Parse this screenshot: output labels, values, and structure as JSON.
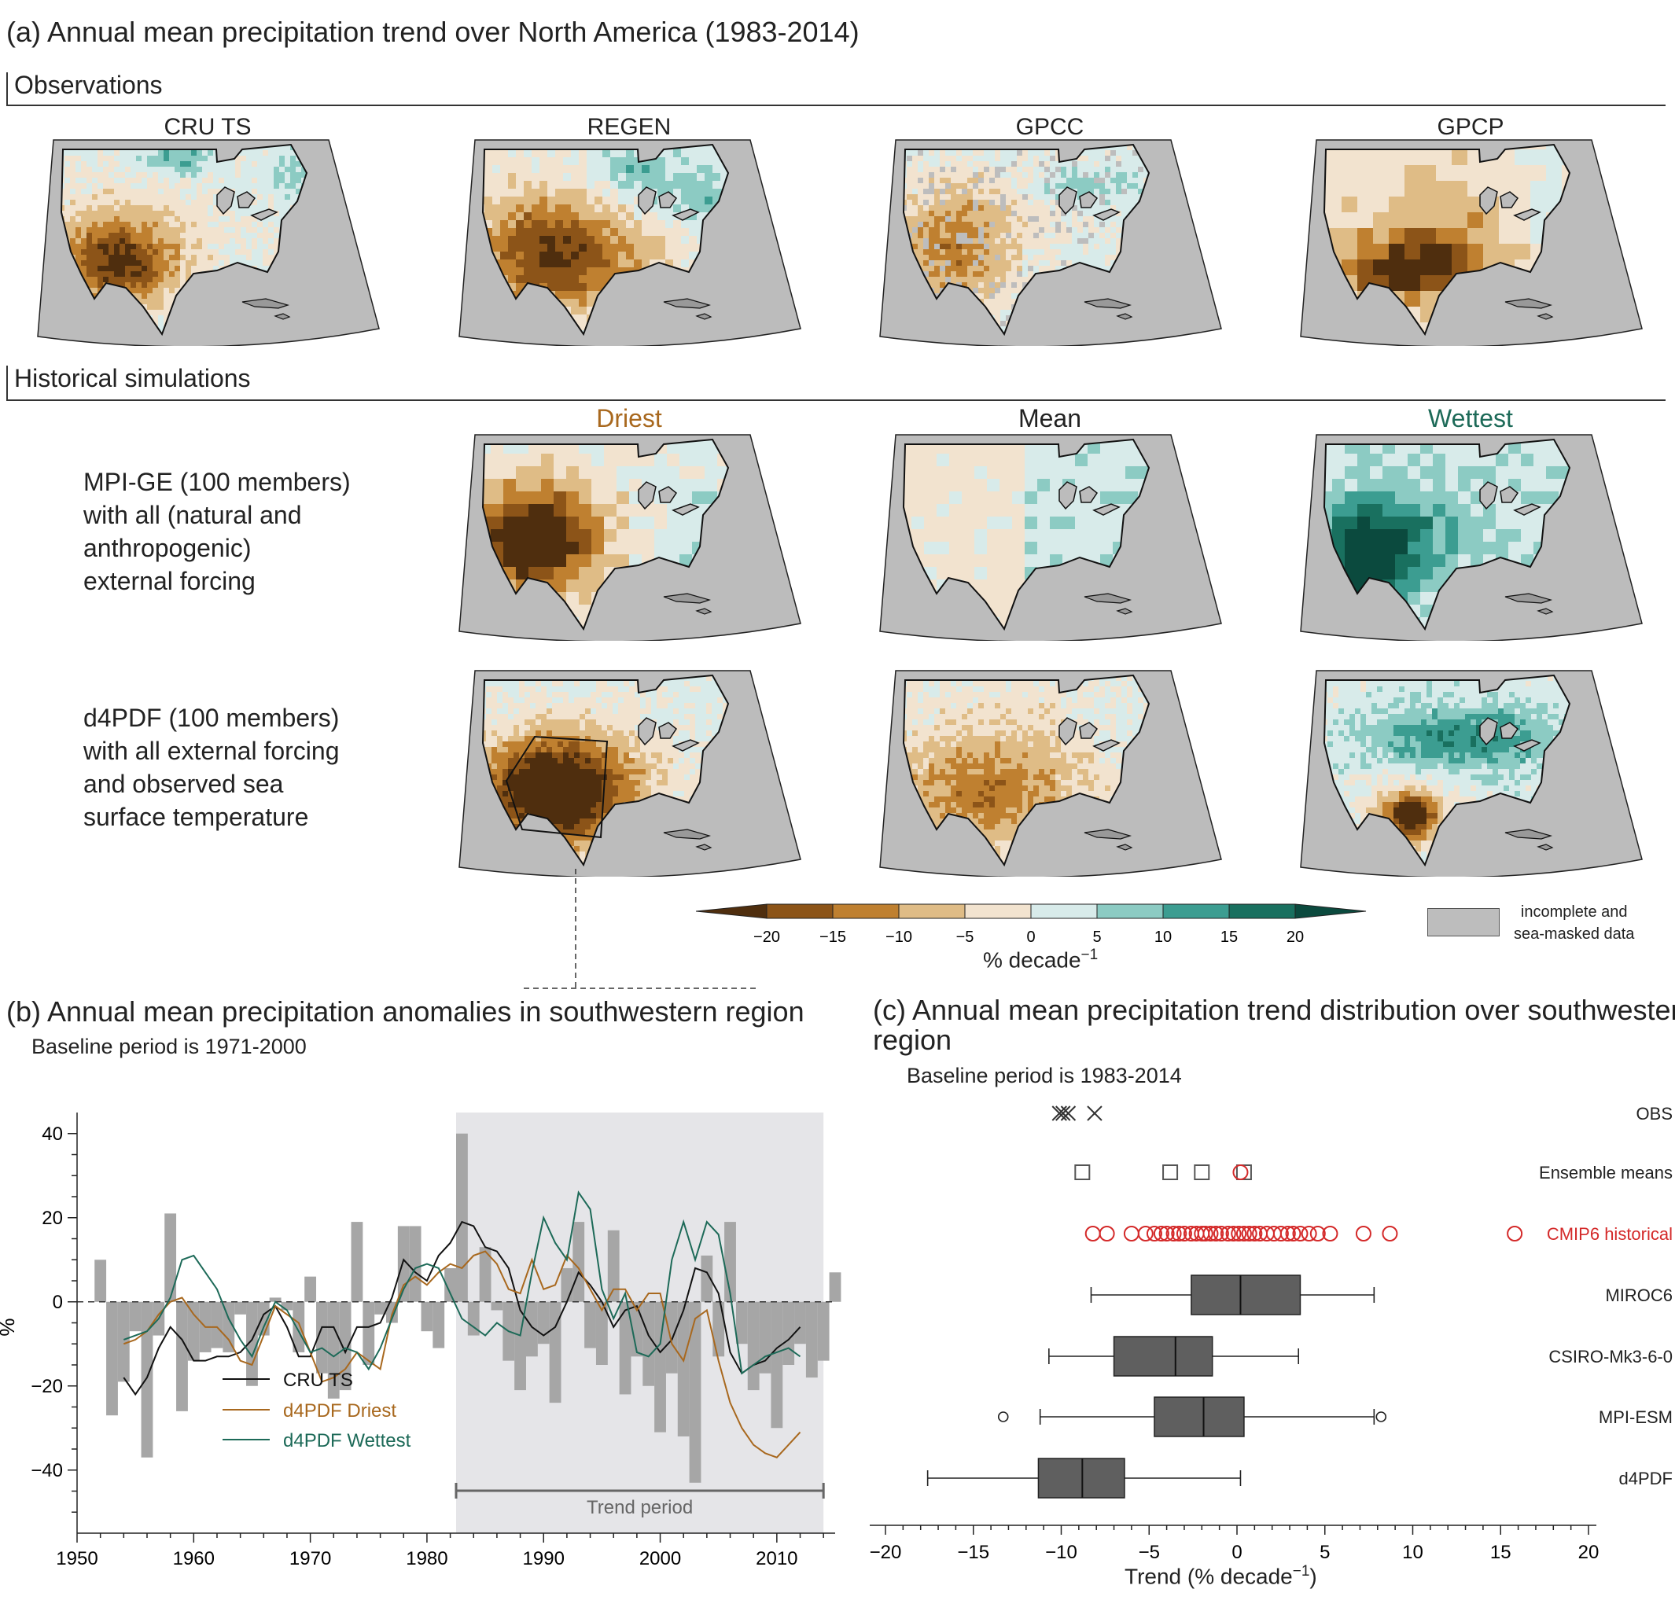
{
  "panel_a": {
    "title": "(a) Annual mean precipitation trend over North America (1983-2014)",
    "obs_header": "Observations",
    "hist_header": "Historical simulations",
    "obs_maps": [
      "CRU TS",
      "REGEN",
      "GPCC",
      "GPCP"
    ],
    "sim_titles": {
      "driest": "Driest",
      "mean": "Mean",
      "wettest": "Wettest"
    },
    "sim_title_colors": {
      "driest": "#a8681e",
      "mean": "#222222",
      "wettest": "#1d6a58"
    },
    "row1_label": [
      "MPI-GE (100 members)",
      "with all (natural and",
      "anthropogenic)",
      "external forcing"
    ],
    "row2_label": [
      "d4PDF (100 members)",
      "with all external forcing",
      "and observed sea",
      "surface temperature"
    ],
    "colorbar": {
      "ticks": [
        "−20",
        "−15",
        "−10",
        "−5",
        "0",
        "5",
        "10",
        "15",
        "20"
      ],
      "colors": [
        "#4f2e0e",
        "#8c5418",
        "#bf8030",
        "#dfbc86",
        "#f2e3cf",
        "#d8ebea",
        "#8ccbc3",
        "#3c9d91",
        "#19705f",
        "#0b4a3e"
      ],
      "unit_main": "% decade",
      "unit_sup": "−1"
    },
    "legend_missing": [
      "incomplete and",
      "sea-masked data"
    ]
  },
  "panel_b": {
    "title": "(b) Annual mean precipitation anomalies in southwestern region",
    "subtitle": "Baseline period is 1971-2000",
    "ylabel": "%",
    "yticks": [
      "40",
      "20",
      "0",
      "−20",
      "−40"
    ],
    "xticks": [
      "1950",
      "1960",
      "1970",
      "1980",
      "1990",
      "2000",
      "2010"
    ],
    "trend_label": "Trend period",
    "legend": [
      "CRU TS",
      "d4PDF Driest",
      "d4PDF Wettest"
    ]
  },
  "panel_c": {
    "title": [
      "(c) Annual mean precipitation trend distribution over southwestern",
      "region"
    ],
    "subtitle": "Baseline period is 1983-2014",
    "xlabel_main": "Trend (% decade",
    "xlabel_sup": "−1",
    "xlabel_end": ")",
    "xticks": [
      "−20",
      "−15",
      "−10",
      "−5",
      "0",
      "5",
      "10",
      "15",
      "20"
    ],
    "row_labels": [
      "OBS",
      "Ensemble means",
      "CMIP6 historical",
      "MIROC6",
      "CSIRO-Mk3-6-0",
      "MPI-ESM",
      "d4PDF"
    ]
  },
  "chart_data": [
    {
      "type": "bar",
      "panel": "b",
      "title": "(b) Annual mean precipitation anomalies in southwestern region",
      "ylabel": "%",
      "ylim": [
        -55,
        45
      ],
      "xlim": [
        1950,
        2015
      ],
      "trend_period": [
        1983,
        2014
      ],
      "series": [
        {
          "name": "bars",
          "x": [
            1952,
            1953,
            1954,
            1955,
            1956,
            1957,
            1958,
            1959,
            1960,
            1961,
            1962,
            1963,
            1964,
            1965,
            1966,
            1967,
            1968,
            1969,
            1970,
            1971,
            1972,
            1973,
            1974,
            1975,
            1976,
            1977,
            1978,
            1979,
            1980,
            1981,
            1982,
            1983,
            1984,
            1985,
            1986,
            1987,
            1988,
            1989,
            1990,
            1991,
            1992,
            1993,
            1994,
            1995,
            1996,
            1997,
            1998,
            1999,
            2000,
            2001,
            2002,
            2003,
            2004,
            2005,
            2006,
            2007,
            2008,
            2009,
            2010,
            2011,
            2012,
            2013,
            2014,
            2015
          ],
          "values": [
            10,
            -27,
            -19,
            -7,
            -37,
            -8,
            21,
            -26,
            -14,
            -12,
            -11,
            -12,
            -3,
            -20,
            -8,
            1,
            -2,
            -12,
            6,
            -17,
            -23,
            -21,
            19,
            -15,
            -3,
            -5,
            18,
            18,
            -7,
            -11,
            8,
            40,
            -8,
            13,
            -2,
            -14,
            -21,
            -13,
            -10,
            -24,
            8,
            19,
            -11,
            -15,
            17,
            -22,
            -13,
            -20,
            -31,
            -17,
            -32,
            -43,
            11,
            -13,
            19,
            -10,
            -21,
            -17,
            -30,
            -15,
            -10,
            -18,
            -14,
            7
          ]
        },
        {
          "name": "CRU TS",
          "x": [
            1954,
            1955,
            1956,
            1957,
            1958,
            1959,
            1960,
            1961,
            1962,
            1963,
            1964,
            1965,
            1966,
            1967,
            1968,
            1969,
            1970,
            1971,
            1972,
            1973,
            1974,
            1975,
            1976,
            1977,
            1978,
            1979,
            1980,
            1981,
            1982,
            1983,
            1984,
            1985,
            1986,
            1987,
            1988,
            1989,
            1990,
            1991,
            1992,
            1993,
            1994,
            1995,
            1996,
            1997,
            1998,
            1999,
            2000,
            2001,
            2002,
            2003,
            2004,
            2005,
            2006,
            2007,
            2008,
            2009,
            2010,
            2011,
            2012
          ],
          "values": [
            -18,
            -22,
            -18,
            -11,
            -6,
            -9,
            -14,
            -14,
            -13,
            -13,
            -12,
            -9,
            -3,
            -1,
            -6,
            -13,
            -13,
            -6,
            -6,
            -12,
            -6,
            -6,
            -5,
            1,
            10,
            7,
            5,
            11,
            14,
            19,
            18,
            13,
            12,
            8,
            -2,
            -6,
            -8,
            -6,
            0,
            7,
            4,
            0,
            -6,
            -2,
            -1,
            -8,
            -12,
            -9,
            -2,
            8,
            7,
            2,
            -12,
            -17,
            -15,
            -14,
            -11,
            -9,
            -6
          ]
        },
        {
          "name": "d4PDF Driest",
          "x": [
            1954,
            1955,
            1956,
            1957,
            1958,
            1959,
            1960,
            1961,
            1962,
            1963,
            1964,
            1965,
            1966,
            1967,
            1968,
            1969,
            1970,
            1971,
            1972,
            1973,
            1974,
            1975,
            1976,
            1977,
            1978,
            1979,
            1980,
            1981,
            1982,
            1983,
            1984,
            1985,
            1986,
            1987,
            1988,
            1989,
            1990,
            1991,
            1992,
            1993,
            1994,
            1995,
            1996,
            1997,
            1998,
            1999,
            2000,
            2001,
            2002,
            2003,
            2004,
            2005,
            2006,
            2007,
            2008,
            2009,
            2010,
            2011,
            2012
          ],
          "values": [
            -10,
            -9,
            -7,
            -3,
            0,
            1,
            -3,
            -6,
            -6,
            -9,
            -14,
            -15,
            -8,
            -1,
            -3,
            -5,
            -12,
            -19,
            -18,
            -16,
            -12,
            -14,
            -16,
            -3,
            4,
            6,
            4,
            7,
            9,
            8,
            11,
            12,
            9,
            3,
            2,
            10,
            3,
            4,
            11,
            8,
            3,
            -2,
            3,
            3,
            -2,
            2,
            2,
            -10,
            -14,
            -4,
            -2,
            -14,
            -24,
            -30,
            -34,
            -36,
            -37,
            -34,
            -31
          ]
        },
        {
          "name": "d4PDF Wettest",
          "x": [
            1954,
            1955,
            1956,
            1957,
            1958,
            1959,
            1960,
            1961,
            1962,
            1963,
            1964,
            1965,
            1966,
            1967,
            1968,
            1969,
            1970,
            1971,
            1972,
            1973,
            1974,
            1975,
            1976,
            1977,
            1978,
            1979,
            1980,
            1981,
            1982,
            1983,
            1984,
            1985,
            1986,
            1987,
            1988,
            1989,
            1990,
            1991,
            1992,
            1993,
            1994,
            1995,
            1996,
            1997,
            1998,
            1999,
            2000,
            2001,
            2002,
            2003,
            2004,
            2005,
            2006,
            2007,
            2008,
            2009,
            2010,
            2011,
            2012
          ],
          "values": [
            -9,
            -8,
            -7,
            -4,
            1,
            10,
            11,
            7,
            3,
            -4,
            -9,
            -13,
            -6,
            0,
            -2,
            -7,
            -12,
            -11,
            -13,
            -11,
            -12,
            -16,
            -11,
            -4,
            3,
            8,
            9,
            8,
            2,
            -4,
            -6,
            -8,
            -5,
            -7,
            -8,
            7,
            20,
            14,
            10,
            26,
            22,
            3,
            -4,
            2,
            -12,
            -13,
            -10,
            10,
            19,
            10,
            19,
            16,
            2,
            -17,
            -15,
            -13,
            -12,
            -11,
            -13
          ]
        }
      ]
    },
    {
      "type": "box",
      "panel": "c",
      "xlabel": "Trend (% decade−1)",
      "xlim": [
        -20,
        20
      ],
      "obs_points": [
        -10.1,
        -9.9,
        -9.6,
        -8.1
      ],
      "ensemble_means": [
        -8.8,
        -3.8,
        -2.0,
        0.4
      ],
      "ensemble_means_red": [
        0.2
      ],
      "cmip6_historical": [
        -8.2,
        -7.4,
        -6.0,
        -5.2,
        -4.7,
        -4.3,
        -4.0,
        -3.6,
        -3.3,
        -3.0,
        -2.6,
        -2.3,
        -2.0,
        -1.8,
        -1.5,
        -1.2,
        -0.9,
        -0.5,
        -0.2,
        0.1,
        0.4,
        0.7,
        1.0,
        1.3,
        1.7,
        2.1,
        2.5,
        2.9,
        3.2,
        3.6,
        4.1,
        4.6,
        5.3,
        7.2,
        8.7,
        15.8
      ],
      "boxes": [
        {
          "name": "MIROC6",
          "whisker_low": -8.3,
          "q1": -2.6,
          "median": 0.2,
          "q3": 3.6,
          "whisker_high": 7.8
        },
        {
          "name": "CSIRO-Mk3-6-0",
          "whisker_low": -10.7,
          "q1": -7.0,
          "median": -3.5,
          "q3": -1.4,
          "whisker_high": 3.5
        },
        {
          "name": "MPI-ESM",
          "whisker_low": -11.2,
          "q1": -4.7,
          "median": -1.9,
          "q3": 0.4,
          "whisker_high": 7.8,
          "outliers": [
            -13.3,
            8.2
          ]
        },
        {
          "name": "d4PDF",
          "whisker_low": -17.6,
          "q1": -11.3,
          "median": -8.8,
          "q3": -6.4,
          "whisker_high": 0.2
        }
      ]
    }
  ]
}
